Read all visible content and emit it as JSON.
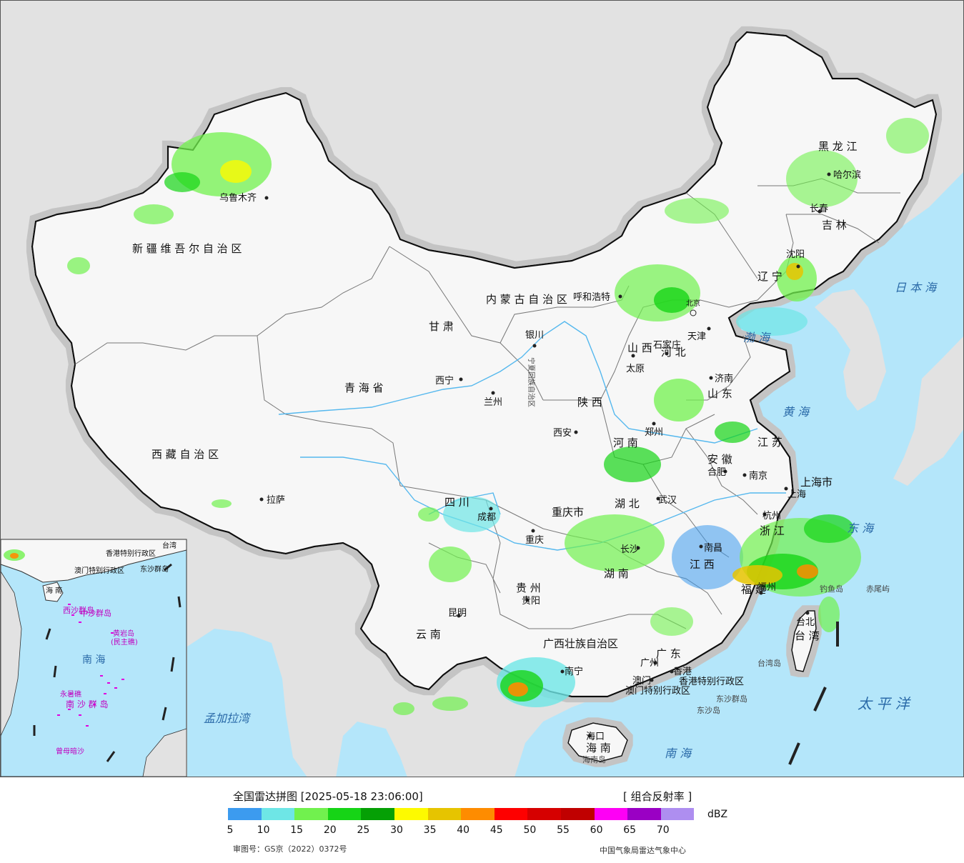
{
  "map": {
    "provinces": [
      {
        "id": "xinjiang",
        "label": "新 疆 维 吾 尔 自 治 区"
      },
      {
        "id": "xizang",
        "label": "西 藏 自 治 区"
      },
      {
        "id": "qinghai",
        "label": "青 海 省"
      },
      {
        "id": "gansu",
        "label": "甘 肃"
      },
      {
        "id": "sichuan",
        "label": "四 川"
      },
      {
        "id": "yunnan",
        "label": "云 南"
      },
      {
        "id": "guizhou",
        "label": "贵 州"
      },
      {
        "id": "guangxi",
        "label": "广西壮族自治区"
      },
      {
        "id": "guangdong",
        "label": "广 东"
      },
      {
        "id": "hunan",
        "label": "湖 南"
      },
      {
        "id": "hubei",
        "label": "湖 北"
      },
      {
        "id": "jiangxi",
        "label": "江 西"
      },
      {
        "id": "fujian",
        "label": "福 建"
      },
      {
        "id": "zhejiang",
        "label": "浙 江"
      },
      {
        "id": "anhui",
        "label": "安 徽"
      },
      {
        "id": "jiangsu",
        "label": "江 苏"
      },
      {
        "id": "shandong",
        "label": "山 东"
      },
      {
        "id": "henan",
        "label": "河 南"
      },
      {
        "id": "shanxi",
        "label": "山 西"
      },
      {
        "id": "shaanxi",
        "label": "陕 西"
      },
      {
        "id": "ningxia",
        "label": "宁夏回族自治区"
      },
      {
        "id": "neimenggu",
        "label": "内 蒙 古 自 治 区"
      },
      {
        "id": "hebei",
        "label": "河 北"
      },
      {
        "id": "liaoning",
        "label": "辽 宁"
      },
      {
        "id": "jilin",
        "label": "吉 林"
      },
      {
        "id": "heilongjiang",
        "label": "黑 龙 江"
      },
      {
        "id": "chongqing",
        "label": "重庆市"
      },
      {
        "id": "shanghai",
        "label": "上海市"
      },
      {
        "id": "taiwan",
        "label": "台 湾"
      },
      {
        "id": "hainan",
        "label": "海 南"
      }
    ],
    "cities": [
      {
        "id": "urumqi",
        "label": "乌鲁木齐"
      },
      {
        "id": "lhasa",
        "label": "拉萨"
      },
      {
        "id": "xining",
        "label": "西宁"
      },
      {
        "id": "lanzhou",
        "label": "兰州"
      },
      {
        "id": "yinchuan",
        "label": "银川"
      },
      {
        "id": "hohhot",
        "label": "呼和浩特"
      },
      {
        "id": "beijing",
        "label": "北京"
      },
      {
        "id": "tianjin",
        "label": "天津"
      },
      {
        "id": "shijiazhuang",
        "label": "石家庄"
      },
      {
        "id": "taiyuan",
        "label": "太原"
      },
      {
        "id": "jinan",
        "label": "济南"
      },
      {
        "id": "zhengzhou",
        "label": "郑州"
      },
      {
        "id": "xian",
        "label": "西安"
      },
      {
        "id": "chengdu",
        "label": "成都"
      },
      {
        "id": "chongqing_c",
        "label": "重庆"
      },
      {
        "id": "wuhan",
        "label": "武汉"
      },
      {
        "id": "hefei",
        "label": "合肥"
      },
      {
        "id": "nanjing",
        "label": "南京"
      },
      {
        "id": "shanghai_c",
        "label": "上海"
      },
      {
        "id": "hangzhou",
        "label": "杭州"
      },
      {
        "id": "nanchang",
        "label": "南昌"
      },
      {
        "id": "changsha",
        "label": "长沙"
      },
      {
        "id": "fuzhou",
        "label": "福州"
      },
      {
        "id": "taibei",
        "label": "台北"
      },
      {
        "id": "guiyang",
        "label": "贵阳"
      },
      {
        "id": "kunming",
        "label": "昆明"
      },
      {
        "id": "nanning",
        "label": "南宁"
      },
      {
        "id": "guangzhou",
        "label": "广州"
      },
      {
        "id": "hongkong",
        "label": "香港"
      },
      {
        "id": "macau",
        "label": "澳门"
      },
      {
        "id": "haikou",
        "label": "海口"
      },
      {
        "id": "shenyang",
        "label": "沈阳"
      },
      {
        "id": "changchun",
        "label": "长春"
      },
      {
        "id": "harbin",
        "label": "哈尔滨"
      }
    ],
    "regions": [
      {
        "id": "hk_sar",
        "label": "香港特别行政区"
      },
      {
        "id": "mo_sar",
        "label": "澳门特别行政区"
      }
    ],
    "seas": [
      {
        "id": "bohai",
        "label": "渤 海"
      },
      {
        "id": "huanghai",
        "label": "黄 海"
      },
      {
        "id": "donghai",
        "label": "东 海"
      },
      {
        "id": "nanhai",
        "label": "南 海"
      },
      {
        "id": "taipingyang",
        "label": "太 平 洋"
      },
      {
        "id": "ribenhai",
        "label": "日 本 海"
      },
      {
        "id": "mengjialawan",
        "label": "孟加拉湾"
      }
    ],
    "islands": [
      {
        "id": "diaoyu",
        "label": "钓鱼岛"
      },
      {
        "id": "chiwei",
        "label": "赤尾屿"
      },
      {
        "id": "taiwan_dao",
        "label": "台湾岛"
      },
      {
        "id": "dongsha_qd",
        "label": "东沙群岛"
      },
      {
        "id": "dongsha_d",
        "label": "东沙岛"
      },
      {
        "id": "hainan_dao",
        "label": "海南岛"
      }
    ],
    "inset": {
      "labels": {
        "nanhai": "南 海",
        "xisha": "西沙群岛",
        "zhongsha": "中沙群岛",
        "nansha": "南 沙 群 岛",
        "huangyan": "黄岩岛",
        "minzhu": "(民主礁)",
        "yongshu": "永暑礁",
        "zengmu": "曾母暗沙",
        "hainan": "海 南",
        "taiwan": "台湾",
        "dongsha": "东沙群岛",
        "hk": "香港特别行政区",
        "mo": "澳门特别行政区"
      }
    },
    "colors": {
      "ocean": "#b4e6fa",
      "land_foreign": "#e2e2e2",
      "land_china": "#f7f7f7",
      "border": "#111111",
      "river": "#55b8ee"
    }
  },
  "legend": {
    "title": "全国雷达拼图 [2025-05-18 23:06:00]",
    "product": "[ 组合反射率 ]",
    "unit": "dBZ",
    "colors": [
      "#3c9bef",
      "#6ee6e6",
      "#71f14e",
      "#16d416",
      "#05a005",
      "#fdfa00",
      "#e6c400",
      "#fe8c00",
      "#fe0000",
      "#d60000",
      "#c00000",
      "#fe00f5",
      "#9a00c4",
      "#ae8ef0"
    ],
    "ticks": [
      "5",
      "10",
      "15",
      "20",
      "25",
      "30",
      "35",
      "40",
      "45",
      "50",
      "55",
      "60",
      "65",
      "70"
    ],
    "approval": "审图号：GS京（2022）0372号",
    "credit": "中国气象局雷达气象中心"
  }
}
